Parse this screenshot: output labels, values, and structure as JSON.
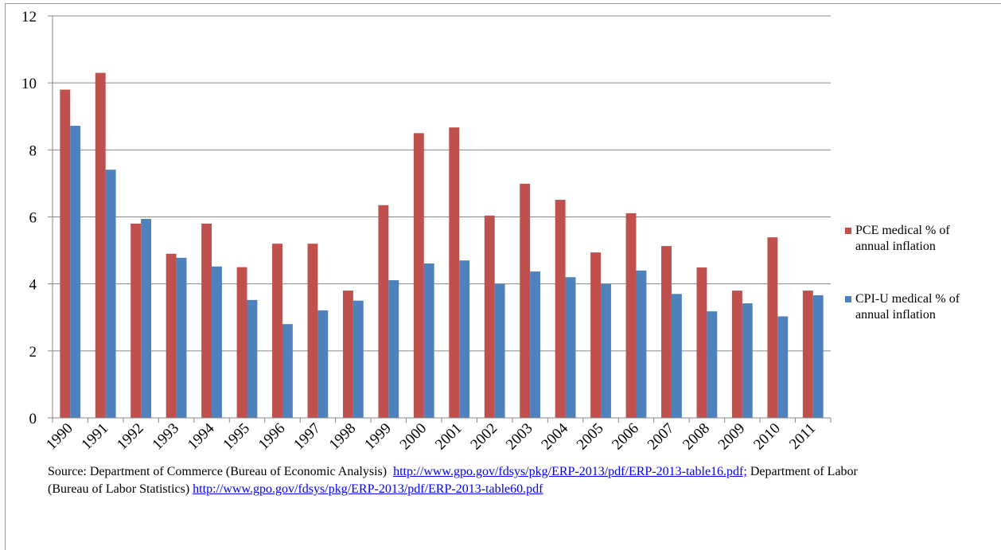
{
  "chart_data": {
    "type": "bar",
    "categories": [
      "1990",
      "1991",
      "1992",
      "1993",
      "1994",
      "1995",
      "1996",
      "1997",
      "1998",
      "1999",
      "2000",
      "2001",
      "2002",
      "2003",
      "2004",
      "2005",
      "2006",
      "2007",
      "2008",
      "2009",
      "2010",
      "2011"
    ],
    "series": [
      {
        "name": "PCE medical % of annual inflation",
        "color": "#c0504d",
        "values": [
          9.8,
          10.3,
          5.8,
          4.9,
          5.8,
          4.5,
          5.2,
          5.2,
          3.8,
          6.35,
          8.5,
          8.67,
          6.04,
          6.99,
          6.51,
          4.94,
          6.11,
          5.13,
          4.49,
          3.8,
          5.39,
          3.8
        ]
      },
      {
        "name": "CPI-U medical % of annual inflation",
        "color": "#4f81bd",
        "values": [
          8.72,
          7.41,
          5.94,
          4.78,
          4.52,
          3.52,
          2.8,
          3.21,
          3.5,
          4.11,
          4.61,
          4.7,
          4.0,
          4.37,
          4.2,
          4.0,
          4.4,
          3.7,
          3.18,
          3.42,
          3.03,
          3.66
        ]
      }
    ],
    "ylim": [
      0,
      12
    ],
    "yticks": [
      0,
      2,
      4,
      6,
      8,
      10,
      12
    ],
    "grid": true,
    "legend": "right",
    "source": {
      "prefix": "Source: Department of Commerce (Bureau of Economic Analysis)",
      "link1": "http://www.gpo.gov/fdsys/pkg/ERP-2013/pdf/ERP-2013-table16.pdf;",
      "middle": "Department of Labor (Bureau of Labor Statistics)",
      "link2": "http://www.gpo.gov/fdsys/pkg/ERP-2013/pdf/ERP-2013-table60.pdf"
    }
  }
}
